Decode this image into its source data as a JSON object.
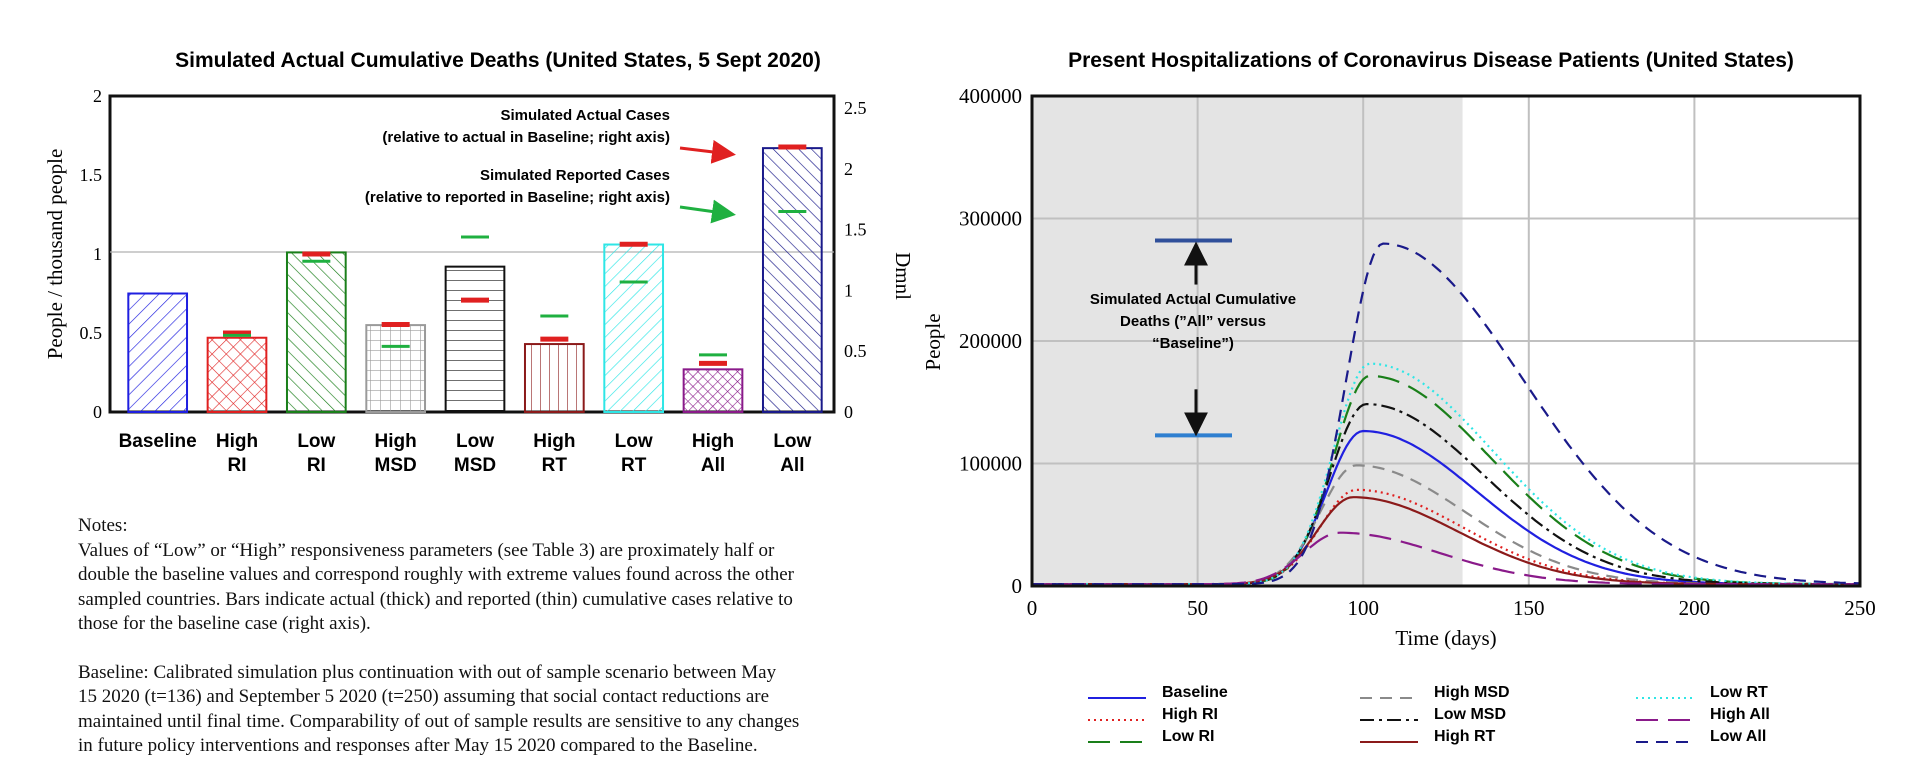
{
  "bar_chart_title": "Simulated Actual Cumulative Deaths (United States, 5 Sept 2020)",
  "line_chart_title": "Present Hospitalizations of Coronavirus Disease Patients (United States)",
  "annotations": {
    "actual_cases_line1": "Simulated Actual Cases",
    "actual_cases_line2": "(relative to actual in Baseline; right axis)",
    "reported_cases_line1": "Simulated Reported Cases",
    "reported_cases_line2": "(relative to reported in Baseline; right axis)",
    "deaths_line1": "Simulated Actual Cumulative",
    "deaths_line2": "Deaths  (”All” versus",
    "deaths_line3": "“Baseline”)"
  },
  "notes": {
    "heading": "Notes:",
    "line1": "Values of  “Low” or “High” responsiveness parameters (see Table 3) are proximately half or",
    "line2": "double the baseline values and correspond roughly with extreme values found across the other",
    "line3": "sampled countries. Bars indicate actual (thick) and reported (thin) cumulative cases relative to",
    "line4": "those for the baseline case (right axis).",
    "line5": "Baseline: Calibrated simulation plus continuation with out of sample scenario between May",
    "line6": "15 2020 (t=136) and September 5 2020 (t=250) assuming that social contact reductions are",
    "line7": "maintained until final time. Comparability of out of sample results are sensitive to any changes",
    "line8": "in future policy interventions and responses after May 15 2020 compared to the Baseline."
  },
  "chart_data": [
    {
      "type": "bar",
      "title": "Simulated Actual Cumulative Deaths (United States, 5 Sept 2020)",
      "ylabel": "People / thousand people",
      "y2label": "Dmnl",
      "ylim": [
        0,
        2
      ],
      "y2lim": [
        0,
        2.6
      ],
      "yticks": [
        "0",
        "0.5",
        "1",
        "1.5",
        "2"
      ],
      "y2ticks": [
        "0",
        "0.5",
        "1",
        "1.5",
        "2",
        "2.5"
      ],
      "categories": [
        [
          "Baseline"
        ],
        [
          "High",
          "RI"
        ],
        [
          "Low",
          "RI"
        ],
        [
          "High",
          "MSD"
        ],
        [
          "Low",
          "MSD"
        ],
        [
          "High",
          "RT"
        ],
        [
          "Low",
          "RT"
        ],
        [
          "High",
          "All"
        ],
        [
          "Low",
          "All"
        ]
      ],
      "values": [
        0.75,
        0.47,
        1.01,
        0.55,
        0.92,
        0.43,
        1.06,
        0.27,
        1.67
      ],
      "colors": [
        "#1f1fe0",
        "#e02020",
        "#1a7f1a",
        "#9a9a9a",
        "#111111",
        "#8b1a1a",
        "#2ee6e6",
        "#8a1a8a",
        "#1a1a8a"
      ],
      "patterns": [
        "diag-right",
        "crosshatch",
        "diag-left",
        "grid",
        "horizontal",
        "vertical",
        "diag-right",
        "crosshatch",
        "diag-left"
      ],
      "actual_cases_right_axis": [
        null,
        0.65,
        1.3,
        0.72,
        0.92,
        0.6,
        1.38,
        0.4,
        2.18
      ],
      "reported_cases_right_axis": [
        null,
        0.63,
        1.24,
        0.54,
        1.44,
        0.79,
        1.07,
        0.47,
        1.65
      ]
    },
    {
      "type": "line",
      "title": "Present Hospitalizations of Coronavirus Disease Patients (United States)",
      "xlabel": "Time (days)",
      "ylabel": "People",
      "xlim": [
        0,
        250
      ],
      "ylim": [
        0,
        400000
      ],
      "xticks": [
        "0",
        "50",
        "100",
        "150",
        "200",
        "250"
      ],
      "yticks": [
        "0",
        "100000",
        "200000",
        "300000",
        "400000"
      ],
      "shaded_region": [
        0,
        130
      ],
      "grid": true,
      "legend_placement": "bottom",
      "series": [
        {
          "name": "Baseline",
          "color": "#2020e0",
          "dash": "solid",
          "peak": 125000,
          "peak_t": 100
        },
        {
          "name": "High RI",
          "color": "#e02020",
          "dash": "dotted",
          "peak": 77000,
          "peak_t": 98
        },
        {
          "name": "Low RI",
          "color": "#1a7f1a",
          "dash": "long-dash",
          "peak": 170000,
          "peak_t": 102
        },
        {
          "name": "High MSD",
          "color": "#8a8a8a",
          "dash": "dash",
          "peak": 97000,
          "peak_t": 98
        },
        {
          "name": "Low MSD",
          "color": "#111111",
          "dash": "dash-dot",
          "peak": 147000,
          "peak_t": 101
        },
        {
          "name": "High RT",
          "color": "#8b1a1a",
          "dash": "solid",
          "peak": 71000,
          "peak_t": 97
        },
        {
          "name": "Low RT",
          "color": "#2ee6e6",
          "dash": "dotted",
          "peak": 180000,
          "peak_t": 102
        },
        {
          "name": "High All",
          "color": "#8a1a8a",
          "dash": "long-dash",
          "peak": 42000,
          "peak_t": 93
        },
        {
          "name": "Low All",
          "color": "#1a1a8a",
          "dash": "dash",
          "peak": 278000,
          "peak_t": 106
        }
      ],
      "annotation_levels": {
        "upper": 282000,
        "lower": 123000
      }
    }
  ]
}
